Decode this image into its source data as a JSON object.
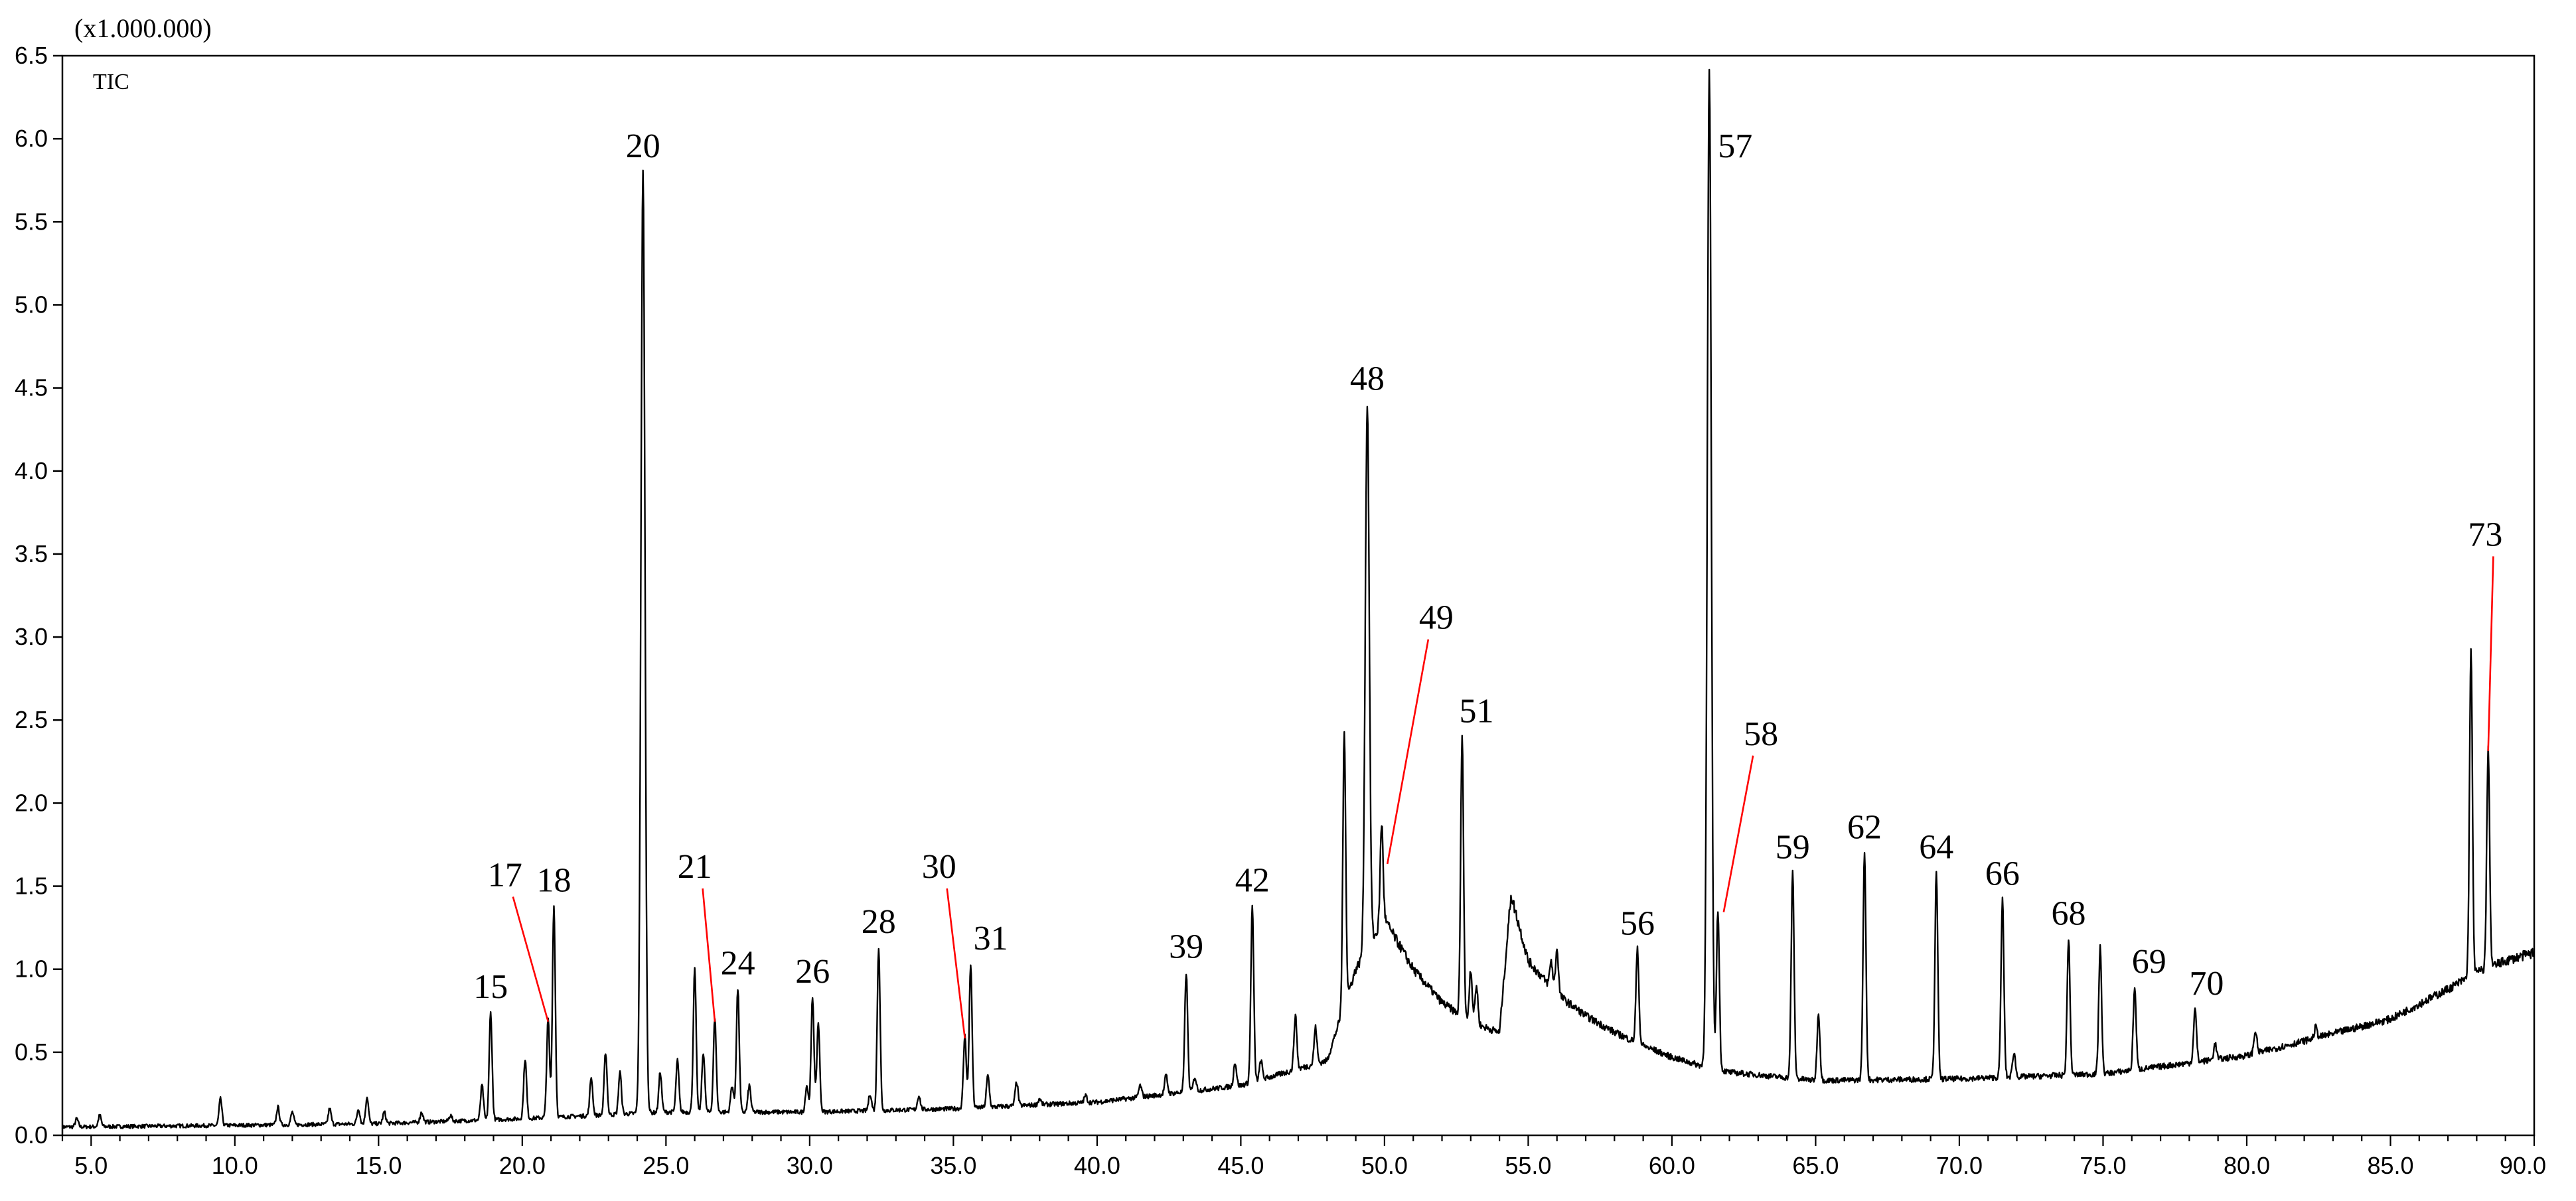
{
  "chart_data": {
    "type": "line",
    "y_scale_label": "(x1.000.000)",
    "series_label": "TIC",
    "xlim": [
      4.0,
      90.0
    ],
    "ylim": [
      0.0,
      6.5
    ],
    "x_ticks": [
      5.0,
      10.0,
      15.0,
      20.0,
      25.0,
      30.0,
      35.0,
      40.0,
      45.0,
      50.0,
      55.0,
      60.0,
      65.0,
      70.0,
      75.0,
      80.0,
      85.0,
      90.0
    ],
    "x_tick_labels": [
      "5.0",
      "10.0",
      "15.0",
      "20.0",
      "25.0",
      "30.0",
      "35.0",
      "40.0",
      "45.0",
      "50.0",
      "55.0",
      "60.0",
      "65.0",
      "70.0",
      "75.0",
      "80.0",
      "85.0",
      "90.0"
    ],
    "y_ticks": [
      0.0,
      0.5,
      1.0,
      1.5,
      2.0,
      2.5,
      3.0,
      3.5,
      4.0,
      4.5,
      5.0,
      5.5,
      6.0,
      6.5
    ],
    "y_tick_labels": [
      "0.0",
      "0.5",
      "1.0",
      "1.5",
      "2.0",
      "2.5",
      "3.0",
      "3.5",
      "4.0",
      "4.5",
      "5.0",
      "5.5",
      "6.0",
      "6.5"
    ],
    "baseline": [
      [
        4.0,
        0.05
      ],
      [
        10.0,
        0.06
      ],
      [
        15.0,
        0.07
      ],
      [
        20.0,
        0.1
      ],
      [
        25.0,
        0.14
      ],
      [
        30.0,
        0.14
      ],
      [
        35.0,
        0.16
      ],
      [
        40.0,
        0.2
      ],
      [
        45.0,
        0.3
      ],
      [
        48.0,
        0.45
      ],
      [
        49.0,
        1.0
      ],
      [
        50.0,
        1.3
      ],
      [
        51.0,
        1.0
      ],
      [
        52.0,
        0.8
      ],
      [
        53.0,
        0.68
      ],
      [
        54.0,
        0.62
      ],
      [
        54.4,
        1.45
      ],
      [
        55.0,
        1.05
      ],
      [
        56.0,
        0.85
      ],
      [
        57.0,
        0.72
      ],
      [
        58.0,
        0.62
      ],
      [
        59.0,
        0.54
      ],
      [
        60.0,
        0.47
      ],
      [
        61.0,
        0.42
      ],
      [
        62.0,
        0.38
      ],
      [
        65.0,
        0.33
      ],
      [
        70.0,
        0.34
      ],
      [
        75.0,
        0.37
      ],
      [
        80.0,
        0.48
      ],
      [
        85.0,
        0.7
      ],
      [
        87.0,
        0.88
      ],
      [
        88.0,
        0.98
      ],
      [
        89.0,
        1.05
      ],
      [
        90.0,
        1.1
      ]
    ],
    "peaks": [
      {
        "x": 4.5,
        "y": 0.1
      },
      {
        "x": 5.3,
        "y": 0.12
      },
      {
        "x": 9.5,
        "y": 0.22
      },
      {
        "x": 11.5,
        "y": 0.17
      },
      {
        "x": 12.0,
        "y": 0.14
      },
      {
        "x": 13.3,
        "y": 0.16
      },
      {
        "x": 14.3,
        "y": 0.16
      },
      {
        "x": 14.6,
        "y": 0.23
      },
      {
        "x": 15.2,
        "y": 0.14
      },
      {
        "x": 16.5,
        "y": 0.14
      },
      {
        "x": 17.5,
        "y": 0.12
      },
      {
        "x": 18.6,
        "y": 0.3
      },
      {
        "x": 18.9,
        "y": 0.74
      },
      {
        "x": 20.1,
        "y": 0.46
      },
      {
        "x": 20.9,
        "y": 0.7
      },
      {
        "x": 21.1,
        "y": 1.38
      },
      {
        "x": 22.4,
        "y": 0.35
      },
      {
        "x": 22.9,
        "y": 0.5
      },
      {
        "x": 23.4,
        "y": 0.38
      },
      {
        "x": 24.2,
        "y": 5.8
      },
      {
        "x": 24.8,
        "y": 0.38
      },
      {
        "x": 25.4,
        "y": 0.45
      },
      {
        "x": 26.0,
        "y": 1.0
      },
      {
        "x": 26.3,
        "y": 0.5
      },
      {
        "x": 26.7,
        "y": 0.7
      },
      {
        "x": 27.3,
        "y": 0.3
      },
      {
        "x": 27.5,
        "y": 0.88
      },
      {
        "x": 27.9,
        "y": 0.3
      },
      {
        "x": 29.9,
        "y": 0.3
      },
      {
        "x": 30.1,
        "y": 0.83
      },
      {
        "x": 30.3,
        "y": 0.68
      },
      {
        "x": 32.1,
        "y": 0.25
      },
      {
        "x": 32.4,
        "y": 1.13
      },
      {
        "x": 33.8,
        "y": 0.24
      },
      {
        "x": 35.4,
        "y": 0.6
      },
      {
        "x": 35.6,
        "y": 1.03
      },
      {
        "x": 36.2,
        "y": 0.36
      },
      {
        "x": 37.2,
        "y": 0.32
      },
      {
        "x": 38.0,
        "y": 0.22
      },
      {
        "x": 39.6,
        "y": 0.24
      },
      {
        "x": 41.5,
        "y": 0.3
      },
      {
        "x": 42.4,
        "y": 0.36
      },
      {
        "x": 43.1,
        "y": 0.98
      },
      {
        "x": 43.4,
        "y": 0.35
      },
      {
        "x": 44.8,
        "y": 0.44
      },
      {
        "x": 45.4,
        "y": 1.38
      },
      {
        "x": 45.7,
        "y": 0.45
      },
      {
        "x": 46.9,
        "y": 0.72
      },
      {
        "x": 47.6,
        "y": 0.65
      },
      {
        "x": 48.6,
        "y": 2.42
      },
      {
        "x": 49.4,
        "y": 4.4
      },
      {
        "x": 49.9,
        "y": 1.88
      },
      {
        "x": 52.7,
        "y": 2.4
      },
      {
        "x": 53.0,
        "y": 1.0
      },
      {
        "x": 53.2,
        "y": 0.9
      },
      {
        "x": 54.1,
        "y": 0.75
      },
      {
        "x": 55.8,
        "y": 1.05
      },
      {
        "x": 56.0,
        "y": 1.12
      },
      {
        "x": 58.8,
        "y": 1.12
      },
      {
        "x": 61.3,
        "y": 6.4
      },
      {
        "x": 61.6,
        "y": 1.36
      },
      {
        "x": 64.2,
        "y": 1.58
      },
      {
        "x": 65.1,
        "y": 0.73
      },
      {
        "x": 66.7,
        "y": 1.7
      },
      {
        "x": 69.2,
        "y": 1.58
      },
      {
        "x": 71.5,
        "y": 1.42
      },
      {
        "x": 71.9,
        "y": 0.5
      },
      {
        "x": 73.8,
        "y": 1.18
      },
      {
        "x": 74.9,
        "y": 1.13
      },
      {
        "x": 76.1,
        "y": 0.89
      },
      {
        "x": 78.2,
        "y": 0.76
      },
      {
        "x": 78.9,
        "y": 0.55
      },
      {
        "x": 80.3,
        "y": 0.63
      },
      {
        "x": 82.4,
        "y": 0.65
      },
      {
        "x": 87.8,
        "y": 2.92
      },
      {
        "x": 88.4,
        "y": 2.33
      }
    ],
    "annotations": [
      {
        "label": "15",
        "x": 18.9,
        "y": 0.74,
        "leader": false
      },
      {
        "label": "17",
        "x": 20.9,
        "y": 0.7,
        "leader": true,
        "label_x": 19.4,
        "label_y": 1.5
      },
      {
        "label": "18",
        "x": 21.1,
        "y": 1.38,
        "leader": false
      },
      {
        "label": "20",
        "x": 24.2,
        "y": 5.8,
        "leader": false
      },
      {
        "label": "21",
        "x": 26.7,
        "y": 0.7,
        "leader": true,
        "label_x": 26.0,
        "label_y": 1.55
      },
      {
        "label": "24",
        "x": 27.5,
        "y": 0.88,
        "leader": false
      },
      {
        "label": "26",
        "x": 30.1,
        "y": 0.83,
        "leader": false
      },
      {
        "label": "28",
        "x": 32.4,
        "y": 1.13,
        "leader": false
      },
      {
        "label": "30",
        "x": 35.4,
        "y": 0.6,
        "leader": true,
        "label_x": 34.5,
        "label_y": 1.55
      },
      {
        "label": "31",
        "x": 35.6,
        "y": 1.03,
        "leader": false,
        "label_dx": 0.7
      },
      {
        "label": "39",
        "x": 43.1,
        "y": 0.98,
        "leader": false
      },
      {
        "label": "42",
        "x": 45.4,
        "y": 1.38,
        "leader": false
      },
      {
        "label": "48",
        "x": 49.4,
        "y": 4.4,
        "leader": false
      },
      {
        "label": "49",
        "x": 50.1,
        "y": 1.65,
        "leader": true,
        "label_x": 51.8,
        "label_y": 3.05
      },
      {
        "label": "51",
        "x": 52.7,
        "y": 2.4,
        "leader": false,
        "label_dx": 0.5
      },
      {
        "label": "56",
        "x": 58.8,
        "y": 1.12,
        "leader": false
      },
      {
        "label": "57",
        "x": 61.3,
        "y": 6.4,
        "leader": false,
        "label_dx": 0.9,
        "label_dy": -0.6
      },
      {
        "label": "58",
        "x": 61.8,
        "y": 1.36,
        "leader": true,
        "label_x": 63.1,
        "label_y": 2.35
      },
      {
        "label": "59",
        "x": 64.2,
        "y": 1.58,
        "leader": false
      },
      {
        "label": "62",
        "x": 66.7,
        "y": 1.7,
        "leader": false
      },
      {
        "label": "64",
        "x": 69.2,
        "y": 1.58,
        "leader": false
      },
      {
        "label": "66",
        "x": 71.5,
        "y": 1.42,
        "leader": false
      },
      {
        "label": "68",
        "x": 73.8,
        "y": 1.18,
        "leader": false
      },
      {
        "label": "69",
        "x": 76.1,
        "y": 0.89,
        "leader": false,
        "label_dx": 0.5
      },
      {
        "label": "70",
        "x": 78.2,
        "y": 0.76,
        "leader": false,
        "label_dx": 0.4
      },
      {
        "label": "73",
        "x": 88.4,
        "y": 2.33,
        "leader": true,
        "label_x": 88.3,
        "label_y": 3.55
      }
    ],
    "colors": {
      "trace": "#000000",
      "leader": "#ff0000",
      "axis": "#000000"
    },
    "grid": false,
    "legend": "none"
  }
}
